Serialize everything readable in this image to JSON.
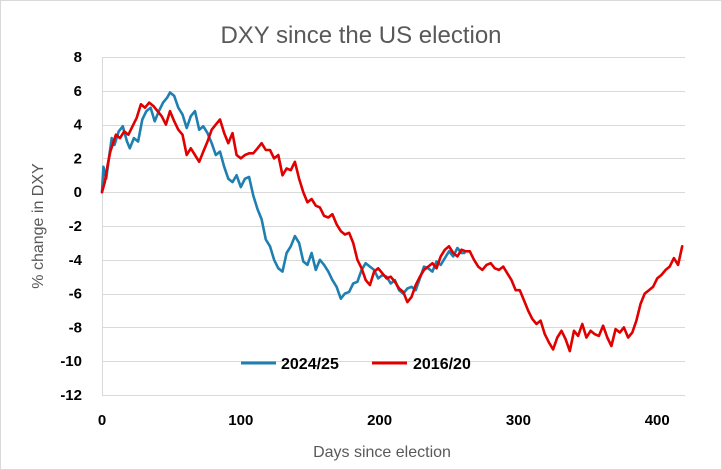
{
  "chart_data": {
    "type": "line",
    "title": "DXY since the US election",
    "xlabel": "Days since election",
    "ylabel": "% change in DXY",
    "xlim": [
      0,
      420
    ],
    "ylim": [
      -12,
      8
    ],
    "x_ticks": [
      0,
      100,
      200,
      300,
      400
    ],
    "y_ticks": [
      8,
      6,
      4,
      2,
      0,
      -2,
      -4,
      -6,
      -8,
      -10,
      -12
    ],
    "x_tick_labels": [
      "0",
      "100",
      "200",
      "300",
      "400"
    ],
    "y_tick_labels": [
      "8",
      "6",
      "4",
      "2",
      "0",
      "-2",
      "-4",
      "-6",
      "-8",
      "-10",
      "-12"
    ],
    "grid": true,
    "legend_position": "bottom-inside",
    "series": [
      {
        "name": "2024/25",
        "color": "#1f7fb1",
        "x": [
          0,
          1,
          3,
          5,
          7,
          9,
          12,
          15,
          18,
          20,
          23,
          26,
          29,
          32,
          35,
          38,
          41,
          44,
          47,
          49,
          52,
          55,
          58,
          61,
          64,
          67,
          70,
          73,
          76,
          79,
          82,
          85,
          88,
          91,
          94,
          97,
          100,
          103,
          106,
          109,
          112,
          115,
          118,
          121,
          124,
          127,
          130,
          133,
          136,
          139,
          142,
          145,
          148,
          151,
          154,
          157,
          160,
          163,
          166,
          169,
          172,
          175,
          178,
          181,
          184,
          187,
          190,
          193,
          196,
          199,
          202,
          205,
          208,
          211,
          214,
          217,
          220,
          223,
          226,
          229,
          232,
          235,
          238,
          241,
          244,
          247,
          250,
          253,
          256,
          259,
          261
        ],
        "values": [
          0.0,
          1.5,
          0.8,
          2.0,
          3.2,
          2.8,
          3.6,
          3.9,
          3.0,
          2.6,
          3.2,
          3.0,
          4.3,
          4.8,
          5.0,
          4.2,
          4.8,
          5.3,
          5.6,
          5.9,
          5.7,
          5.0,
          4.6,
          3.8,
          4.5,
          4.8,
          3.7,
          3.9,
          3.5,
          2.9,
          2.2,
          2.4,
          1.5,
          0.8,
          0.6,
          1.0,
          0.3,
          0.8,
          0.9,
          -0.2,
          -1.0,
          -1.6,
          -2.8,
          -3.2,
          -4.0,
          -4.5,
          -4.7,
          -3.6,
          -3.2,
          -2.6,
          -3.0,
          -4.1,
          -4.3,
          -3.6,
          -4.6,
          -4.0,
          -4.3,
          -4.7,
          -5.2,
          -5.6,
          -6.3,
          -6.0,
          -5.9,
          -5.4,
          -5.3,
          -4.6,
          -4.2,
          -4.4,
          -4.6,
          -5.1,
          -4.9,
          -5.0,
          -5.4,
          -5.2,
          -5.8,
          -6.0,
          -5.7,
          -5.6,
          -5.8,
          -5.1,
          -4.4,
          -4.5,
          -4.7,
          -4.1,
          -4.3,
          -3.9,
          -3.5,
          -3.8,
          -3.3,
          -3.6,
          -3.6
        ]
      },
      {
        "name": "2016/20",
        "color": "#e00000",
        "x": [
          0,
          2,
          4,
          6,
          8,
          10,
          13,
          16,
          19,
          22,
          25,
          28,
          31,
          34,
          37,
          40,
          43,
          46,
          49,
          52,
          55,
          58,
          61,
          64,
          67,
          70,
          73,
          76,
          79,
          82,
          85,
          88,
          91,
          94,
          97,
          100,
          103,
          106,
          109,
          112,
          115,
          118,
          121,
          124,
          127,
          130,
          133,
          136,
          139,
          142,
          145,
          148,
          151,
          154,
          157,
          160,
          163,
          166,
          169,
          172,
          175,
          178,
          181,
          184,
          187,
          190,
          193,
          196,
          199,
          202,
          205,
          208,
          211,
          214,
          217,
          220,
          223,
          226,
          229,
          232,
          235,
          238,
          241,
          244,
          247,
          250,
          253,
          256,
          259,
          262,
          265,
          268,
          271,
          274,
          277,
          280,
          283,
          286,
          289,
          292,
          295,
          298,
          301,
          304,
          307,
          310,
          313,
          316,
          319,
          322,
          325,
          328,
          331,
          334,
          337,
          340,
          343,
          346,
          349,
          352,
          355,
          358,
          361,
          364,
          367,
          370,
          373,
          376,
          379,
          382,
          385,
          388,
          391,
          394,
          397,
          400,
          403,
          406,
          409,
          412,
          415,
          418
        ],
        "values": [
          0.0,
          0.6,
          1.6,
          2.4,
          2.9,
          3.4,
          3.2,
          3.6,
          3.4,
          3.9,
          4.4,
          5.2,
          5.0,
          5.3,
          5.1,
          4.8,
          4.5,
          4.0,
          4.8,
          4.2,
          3.7,
          3.4,
          2.2,
          2.6,
          2.2,
          1.8,
          2.4,
          3.0,
          3.7,
          4.0,
          4.3,
          3.5,
          2.9,
          3.5,
          2.2,
          2.0,
          2.2,
          2.3,
          2.3,
          2.6,
          2.9,
          2.5,
          2.5,
          2.0,
          2.2,
          1.0,
          1.4,
          1.3,
          1.8,
          0.8,
          0.0,
          -0.6,
          -0.4,
          -0.8,
          -0.9,
          -1.4,
          -1.5,
          -1.3,
          -1.9,
          -2.3,
          -2.5,
          -2.4,
          -3.0,
          -4.0,
          -4.5,
          -5.2,
          -5.5,
          -4.7,
          -4.5,
          -4.8,
          -5.1,
          -5.0,
          -5.3,
          -5.7,
          -5.9,
          -6.5,
          -6.2,
          -5.5,
          -5.0,
          -4.6,
          -4.4,
          -4.2,
          -4.5,
          -3.8,
          -3.4,
          -3.2,
          -3.6,
          -3.8,
          -3.4,
          -3.5,
          -3.5,
          -4.0,
          -4.4,
          -4.6,
          -4.3,
          -4.2,
          -4.5,
          -4.6,
          -4.4,
          -4.8,
          -5.2,
          -5.8,
          -5.8,
          -6.4,
          -7.0,
          -7.5,
          -7.8,
          -7.6,
          -8.4,
          -8.9,
          -9.3,
          -8.6,
          -8.2,
          -8.7,
          -9.4,
          -8.2,
          -8.5,
          -7.8,
          -8.6,
          -8.2,
          -8.4,
          -8.5,
          -7.9,
          -8.6,
          -9.1,
          -8.1,
          -8.3,
          -8.0,
          -8.6,
          -8.3,
          -7.6,
          -6.6,
          -6.0,
          -5.8,
          -5.6,
          -5.1,
          -4.9,
          -4.6,
          -4.4,
          -3.9,
          -4.3,
          -3.2
        ]
      }
    ]
  }
}
